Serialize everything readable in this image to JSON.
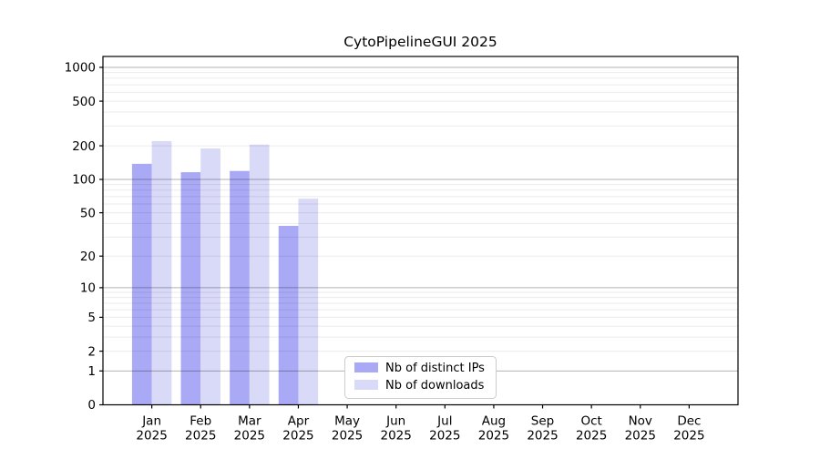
{
  "figure": {
    "background": "#ffffff"
  },
  "chart_data": {
    "type": "bar",
    "title": "CytoPipelineGUI 2025",
    "year": "2025",
    "categories": [
      "Jan",
      "Feb",
      "Mar",
      "Apr",
      "May",
      "Jun",
      "Jul",
      "Aug",
      "Sep",
      "Oct",
      "Nov",
      "Dec"
    ],
    "series": [
      {
        "name": "Nb of distinct IPs",
        "color": "#a9a9f5",
        "values": [
          138,
          116,
          119,
          38,
          null,
          null,
          null,
          null,
          null,
          null,
          null,
          null
        ]
      },
      {
        "name": "Nb of downloads",
        "color": "#d9d9f8",
        "values": [
          220,
          189,
          205,
          67,
          null,
          null,
          null,
          null,
          null,
          null,
          null,
          null
        ]
      }
    ],
    "xlabel": "",
    "ylabel": "",
    "yticks": [
      0,
      1,
      2,
      5,
      10,
      20,
      50,
      100,
      200,
      500,
      1000
    ],
    "yscale": "log10(value+1)",
    "ylim": [
      0,
      1250
    ],
    "grid": {
      "on": true,
      "major_values": [
        1,
        10,
        100,
        1000
      ],
      "minor_rule": "2..9 per decade"
    },
    "legend": {
      "position": "bottom-center",
      "frame": true
    }
  },
  "colors": {
    "spine": "#000000",
    "grid_major": "rgba(0,0,0,0.30)",
    "grid_minor": "rgba(0,0,0,0.08)",
    "legend_border": "#cccccc",
    "legend_bg": "#ffffff"
  }
}
